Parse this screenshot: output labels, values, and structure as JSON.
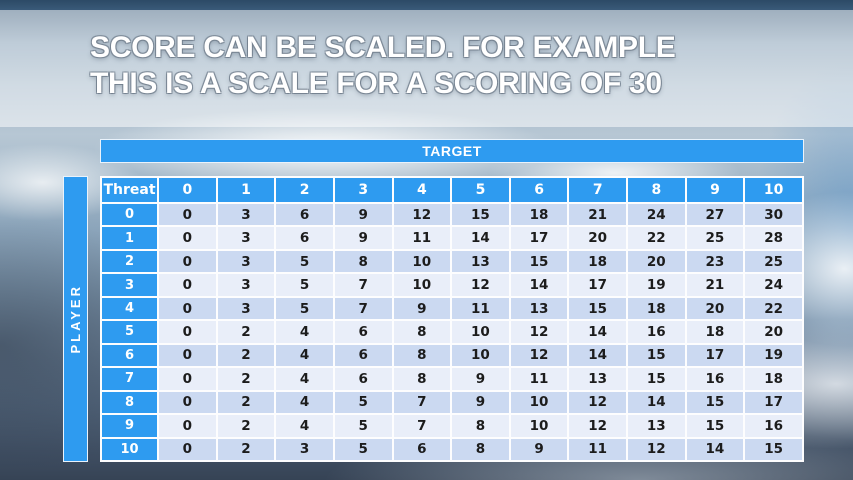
{
  "slide": {
    "title_line1": "SCORE CAN BE SCALED. FOR EXAMPLE",
    "title_line2": "THIS IS A SCALE FOR A SCORING OF 30"
  },
  "table": {
    "target_label": "TARGET",
    "player_label": "PLAYER",
    "corner_label": "Threat",
    "column_headers": [
      "0",
      "1",
      "2",
      "3",
      "4",
      "5",
      "6",
      "7",
      "8",
      "9",
      "10"
    ],
    "rows": [
      {
        "header": "0",
        "values": [
          "0",
          "3",
          "6",
          "9",
          "12",
          "15",
          "18",
          "21",
          "24",
          "27",
          "30"
        ]
      },
      {
        "header": "1",
        "values": [
          "0",
          "3",
          "6",
          "9",
          "11",
          "14",
          "17",
          "20",
          "22",
          "25",
          "28"
        ]
      },
      {
        "header": "2",
        "values": [
          "0",
          "3",
          "5",
          "8",
          "10",
          "13",
          "15",
          "18",
          "20",
          "23",
          "25"
        ]
      },
      {
        "header": "3",
        "values": [
          "0",
          "3",
          "5",
          "7",
          "10",
          "12",
          "14",
          "17",
          "19",
          "21",
          "24"
        ]
      },
      {
        "header": "4",
        "values": [
          "0",
          "3",
          "5",
          "7",
          "9",
          "11",
          "13",
          "15",
          "18",
          "20",
          "22"
        ]
      },
      {
        "header": "5",
        "values": [
          "0",
          "2",
          "4",
          "6",
          "8",
          "10",
          "12",
          "14",
          "16",
          "18",
          "20"
        ]
      },
      {
        "header": "6",
        "values": [
          "0",
          "2",
          "4",
          "6",
          "8",
          "10",
          "12",
          "14",
          "15",
          "17",
          "19"
        ]
      },
      {
        "header": "7",
        "values": [
          "0",
          "2",
          "4",
          "6",
          "8",
          "9",
          "11",
          "13",
          "15",
          "16",
          "18"
        ]
      },
      {
        "header": "8",
        "values": [
          "0",
          "2",
          "4",
          "5",
          "7",
          "9",
          "10",
          "12",
          "14",
          "15",
          "17"
        ]
      },
      {
        "header": "9",
        "values": [
          "0",
          "2",
          "4",
          "5",
          "7",
          "8",
          "10",
          "12",
          "13",
          "15",
          "16"
        ]
      },
      {
        "header": "10",
        "values": [
          "0",
          "2",
          "3",
          "5",
          "6",
          "8",
          "9",
          "11",
          "12",
          "14",
          "15"
        ]
      }
    ]
  },
  "colors": {
    "accent_blue": "#2e9bf0",
    "row_shade_dark": "#cbd9f1",
    "row_shade_light": "#e9eef9",
    "cell_text": "#1c1c1c"
  }
}
